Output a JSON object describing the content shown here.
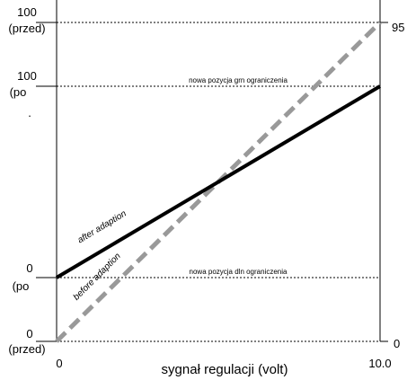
{
  "left_axis": {
    "labels": [
      "100",
      "(przed)",
      "100",
      "(po",
      ".",
      "0",
      "(po",
      "0",
      "(przed)"
    ]
  },
  "right_axis": {
    "labels": [
      "95",
      "0"
    ]
  },
  "x_axis": {
    "labels": [
      "0",
      "10.0"
    ],
    "title": "sygnał regulacji (volt)"
  },
  "annotations": {
    "upper_limit": "nowa pozycja grn ograniczenia",
    "lower_limit": "nowa pozycja dln ograniczenia",
    "after": "after adaption",
    "before": "before adaption"
  }
}
